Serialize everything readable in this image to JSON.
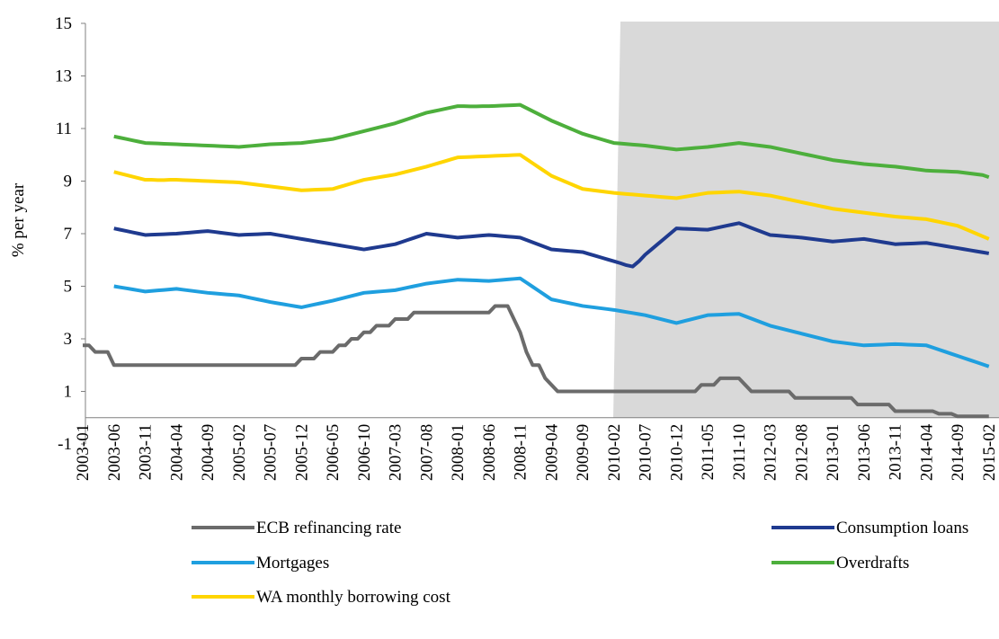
{
  "chart_data": {
    "type": "line",
    "y_label": "% per year",
    "categories": [
      "2003-01",
      null,
      null,
      null,
      null,
      "2003-06",
      null,
      null,
      null,
      null,
      "2003-11",
      null,
      null,
      null,
      null,
      "2004-04",
      null,
      null,
      null,
      null,
      "2004-09",
      null,
      null,
      null,
      null,
      "2005-02",
      null,
      null,
      null,
      null,
      "2005-07",
      null,
      null,
      null,
      null,
      "2005-12",
      null,
      null,
      null,
      null,
      "2006-05",
      null,
      null,
      null,
      null,
      "2006-10",
      null,
      null,
      null,
      null,
      "2007-03",
      null,
      null,
      null,
      null,
      "2007-08",
      null,
      null,
      null,
      null,
      "2008-01",
      null,
      null,
      null,
      null,
      "2008-06",
      null,
      null,
      null,
      null,
      "2008-11",
      null,
      null,
      null,
      null,
      "2009-04",
      null,
      null,
      null,
      null,
      "2009-09",
      null,
      null,
      null,
      null,
      "2010-02",
      null,
      null,
      null,
      null,
      "2010-07",
      null,
      null,
      null,
      null,
      "2010-12",
      null,
      null,
      null,
      null,
      "2011-05",
      null,
      null,
      null,
      null,
      "2011-10",
      null,
      null,
      null,
      null,
      "2012-03",
      null,
      null,
      null,
      null,
      "2012-08",
      null,
      null,
      null,
      null,
      "2013-01",
      null,
      null,
      null,
      null,
      "2013-06",
      null,
      null,
      null,
      null,
      "2013-11",
      null,
      null,
      null,
      null,
      "2014-04",
      null,
      null,
      null,
      null,
      "2014-09",
      null,
      null,
      null,
      null,
      "2015-02"
    ],
    "ylim": [
      -1,
      15
    ],
    "yticks": [
      -1,
      1,
      3,
      5,
      7,
      9,
      11,
      13,
      15
    ],
    "series": [
      {
        "name": "ECB refinancing rate",
        "color": "#6b6b6b",
        "values": [
          2.75,
          2.75,
          2.5,
          2.5,
          2.5,
          2,
          2,
          2,
          2,
          2,
          2,
          2,
          2,
          2,
          2,
          2,
          2,
          2,
          2,
          2,
          2,
          2,
          2,
          2,
          2,
          2,
          2,
          2,
          2,
          2,
          2,
          2,
          2,
          2,
          2,
          2.25,
          2.25,
          2.25,
          2.5,
          2.5,
          2.5,
          2.75,
          2.75,
          3,
          3,
          3.25,
          3.25,
          3.5,
          3.5,
          3.5,
          3.75,
          3.75,
          3.75,
          4,
          4,
          4,
          4,
          4,
          4,
          4,
          4,
          4,
          4,
          4,
          4,
          4,
          4.25,
          4.25,
          4.25,
          3.75,
          3.25,
          2.5,
          2,
          2,
          1.5,
          1.25,
          1,
          1,
          1,
          1,
          1,
          1,
          1,
          1,
          1,
          1,
          1,
          1,
          1,
          1,
          1,
          1,
          1,
          1,
          1,
          1,
          1,
          1,
          1,
          1.25,
          1.25,
          1.25,
          1.5,
          1.5,
          1.5,
          1.5,
          1.25,
          1,
          1,
          1,
          1,
          1,
          1,
          1,
          0.75,
          0.75,
          0.75,
          0.75,
          0.75,
          0.75,
          0.75,
          0.75,
          0.75,
          0.75,
          0.5,
          0.5,
          0.5,
          0.5,
          0.5,
          0.5,
          0.25,
          0.25,
          0.25,
          0.25,
          0.25,
          0.25,
          0.25,
          0.15,
          0.15,
          0.15,
          0.05,
          0.05,
          0.05,
          0.05,
          0.05,
          0.05
        ]
      },
      {
        "name": "Consumption loans",
        "color": "#1f3a8f",
        "values": [
          null,
          null,
          null,
          null,
          null,
          7.2,
          7.15,
          7.1,
          7.05,
          7.0,
          6.95,
          6.96,
          6.97,
          6.98,
          6.99,
          7.0,
          7.02,
          7.04,
          7.06,
          7.08,
          7.1,
          7.07,
          7.04,
          7.01,
          6.98,
          6.95,
          6.96,
          6.97,
          6.98,
          6.99,
          7.0,
          6.96,
          6.92,
          6.88,
          6.84,
          6.8,
          6.76,
          6.72,
          6.68,
          6.64,
          6.6,
          6.56,
          6.52,
          6.48,
          6.44,
          6.4,
          6.44,
          6.48,
          6.52,
          6.56,
          6.6,
          6.68,
          6.76,
          6.84,
          6.92,
          7.0,
          6.97,
          6.94,
          6.91,
          6.88,
          6.85,
          6.87,
          6.89,
          6.91,
          6.93,
          6.95,
          6.93,
          6.91,
          6.89,
          6.87,
          6.85,
          6.76,
          6.67,
          6.58,
          6.49,
          6.4,
          6.38,
          6.36,
          6.34,
          6.32,
          6.3,
          6.23,
          6.16,
          6.09,
          6.02,
          5.95,
          5.88,
          5.8,
          5.75,
          5.95,
          6.2,
          6.4,
          6.6,
          6.8,
          7.0,
          7.2,
          7.19,
          7.18,
          7.17,
          7.16,
          7.15,
          7.2,
          7.25,
          7.3,
          7.35,
          7.4,
          7.31,
          7.22,
          7.13,
          7.04,
          6.95,
          6.93,
          6.91,
          6.89,
          6.87,
          6.85,
          6.82,
          6.79,
          6.76,
          6.73,
          6.7,
          6.72,
          6.74,
          6.76,
          6.78,
          6.8,
          6.76,
          6.72,
          6.68,
          6.64,
          6.6,
          6.61,
          6.62,
          6.63,
          6.64,
          6.65,
          6.61,
          6.57,
          6.53,
          6.49,
          6.45,
          6.41,
          6.37,
          6.33,
          6.29,
          6.25
        ]
      },
      {
        "name": "Mortgages",
        "color": "#1f9fdf",
        "values": [
          null,
          null,
          null,
          null,
          null,
          5.0,
          4.96,
          4.92,
          4.88,
          4.84,
          4.8,
          4.82,
          4.84,
          4.86,
          4.88,
          4.9,
          4.87,
          4.84,
          4.81,
          4.78,
          4.75,
          4.73,
          4.71,
          4.69,
          4.67,
          4.65,
          4.6,
          4.55,
          4.5,
          4.45,
          4.4,
          4.36,
          4.32,
          4.28,
          4.24,
          4.2,
          4.25,
          4.3,
          4.35,
          4.4,
          4.45,
          4.51,
          4.57,
          4.63,
          4.69,
          4.75,
          4.77,
          4.79,
          4.81,
          4.83,
          4.85,
          4.9,
          4.95,
          5.0,
          5.05,
          5.1,
          5.13,
          5.16,
          5.19,
          5.22,
          5.25,
          5.24,
          5.23,
          5.22,
          5.21,
          5.2,
          5.22,
          5.24,
          5.26,
          5.28,
          5.3,
          5.14,
          4.98,
          4.82,
          4.66,
          4.5,
          4.45,
          4.4,
          4.35,
          4.3,
          4.25,
          4.22,
          4.19,
          4.16,
          4.13,
          4.1,
          4.06,
          4.02,
          3.98,
          3.94,
          3.9,
          3.84,
          3.78,
          3.72,
          3.66,
          3.6,
          3.66,
          3.72,
          3.78,
          3.84,
          3.9,
          3.91,
          3.92,
          3.93,
          3.94,
          3.95,
          3.86,
          3.77,
          3.68,
          3.59,
          3.5,
          3.44,
          3.38,
          3.32,
          3.26,
          3.2,
          3.14,
          3.08,
          3.02,
          2.96,
          2.9,
          2.87,
          2.84,
          2.81,
          2.78,
          2.75,
          2.76,
          2.77,
          2.78,
          2.79,
          2.8,
          2.79,
          2.78,
          2.77,
          2.76,
          2.75,
          2.67,
          2.59,
          2.51,
          2.43,
          2.35,
          2.27,
          2.19,
          2.11,
          2.03,
          1.95
        ]
      },
      {
        "name": "Overdrafts",
        "color": "#4daf3c",
        "values": [
          null,
          null,
          null,
          null,
          null,
          10.7,
          10.65,
          10.6,
          10.55,
          10.5,
          10.45,
          10.44,
          10.43,
          10.42,
          10.41,
          10.4,
          10.39,
          10.38,
          10.37,
          10.36,
          10.35,
          10.34,
          10.33,
          10.32,
          10.31,
          10.3,
          10.32,
          10.34,
          10.36,
          10.38,
          10.4,
          10.41,
          10.42,
          10.43,
          10.44,
          10.45,
          10.48,
          10.51,
          10.54,
          10.57,
          10.6,
          10.66,
          10.72,
          10.78,
          10.84,
          10.9,
          10.96,
          11.02,
          11.08,
          11.14,
          11.2,
          11.28,
          11.36,
          11.44,
          11.52,
          11.6,
          11.65,
          11.7,
          11.75,
          11.8,
          11.85,
          11.85,
          11.84,
          11.84,
          11.85,
          11.85,
          11.86,
          11.87,
          11.88,
          11.89,
          11.9,
          11.78,
          11.66,
          11.54,
          11.42,
          11.3,
          11.2,
          11.1,
          11.0,
          10.9,
          10.8,
          10.73,
          10.66,
          10.59,
          10.52,
          10.45,
          10.43,
          10.41,
          10.39,
          10.37,
          10.35,
          10.32,
          10.29,
          10.26,
          10.23,
          10.2,
          10.22,
          10.24,
          10.26,
          10.28,
          10.3,
          10.33,
          10.36,
          10.39,
          10.42,
          10.45,
          10.42,
          10.39,
          10.36,
          10.33,
          10.3,
          10.25,
          10.2,
          10.15,
          10.1,
          10.05,
          10.0,
          9.95,
          9.9,
          9.85,
          9.8,
          9.77,
          9.74,
          9.71,
          9.68,
          9.65,
          9.63,
          9.61,
          9.59,
          9.57,
          9.55,
          9.52,
          9.49,
          9.46,
          9.43,
          9.4,
          9.39,
          9.38,
          9.37,
          9.36,
          9.35,
          9.32,
          9.29,
          9.26,
          9.23,
          9.15
        ]
      },
      {
        "name": "WA monthly borrowing cost",
        "color": "#ffd500",
        "values": [
          null,
          null,
          null,
          null,
          null,
          9.35,
          9.29,
          9.23,
          9.17,
          9.11,
          9.05,
          9.05,
          9.04,
          9.04,
          9.05,
          9.05,
          9.04,
          9.03,
          9.02,
          9.01,
          9.0,
          8.99,
          8.98,
          8.97,
          8.96,
          8.95,
          8.92,
          8.89,
          8.86,
          8.83,
          8.8,
          8.77,
          8.74,
          8.71,
          8.68,
          8.65,
          8.66,
          8.67,
          8.68,
          8.69,
          8.7,
          8.77,
          8.84,
          8.91,
          8.98,
          9.05,
          9.09,
          9.13,
          9.17,
          9.21,
          9.25,
          9.31,
          9.37,
          9.43,
          9.49,
          9.55,
          9.62,
          9.69,
          9.76,
          9.83,
          9.9,
          9.91,
          9.92,
          9.93,
          9.94,
          9.95,
          9.96,
          9.97,
          9.98,
          9.99,
          10.0,
          9.84,
          9.68,
          9.52,
          9.36,
          9.2,
          9.1,
          9.0,
          8.9,
          8.8,
          8.7,
          8.67,
          8.64,
          8.61,
          8.58,
          8.55,
          8.53,
          8.51,
          8.49,
          8.47,
          8.45,
          8.43,
          8.41,
          8.39,
          8.37,
          8.35,
          8.39,
          8.43,
          8.47,
          8.51,
          8.55,
          8.56,
          8.57,
          8.58,
          8.59,
          8.6,
          8.57,
          8.54,
          8.51,
          8.48,
          8.45,
          8.4,
          8.35,
          8.3,
          8.25,
          8.2,
          8.15,
          8.1,
          8.05,
          8.0,
          7.95,
          7.92,
          7.89,
          7.86,
          7.83,
          7.8,
          7.77,
          7.74,
          7.71,
          7.68,
          7.65,
          7.63,
          7.61,
          7.59,
          7.57,
          7.55,
          7.5,
          7.45,
          7.4,
          7.35,
          7.3,
          7.2,
          7.1,
          7.0,
          6.9,
          6.8
        ]
      }
    ]
  }
}
